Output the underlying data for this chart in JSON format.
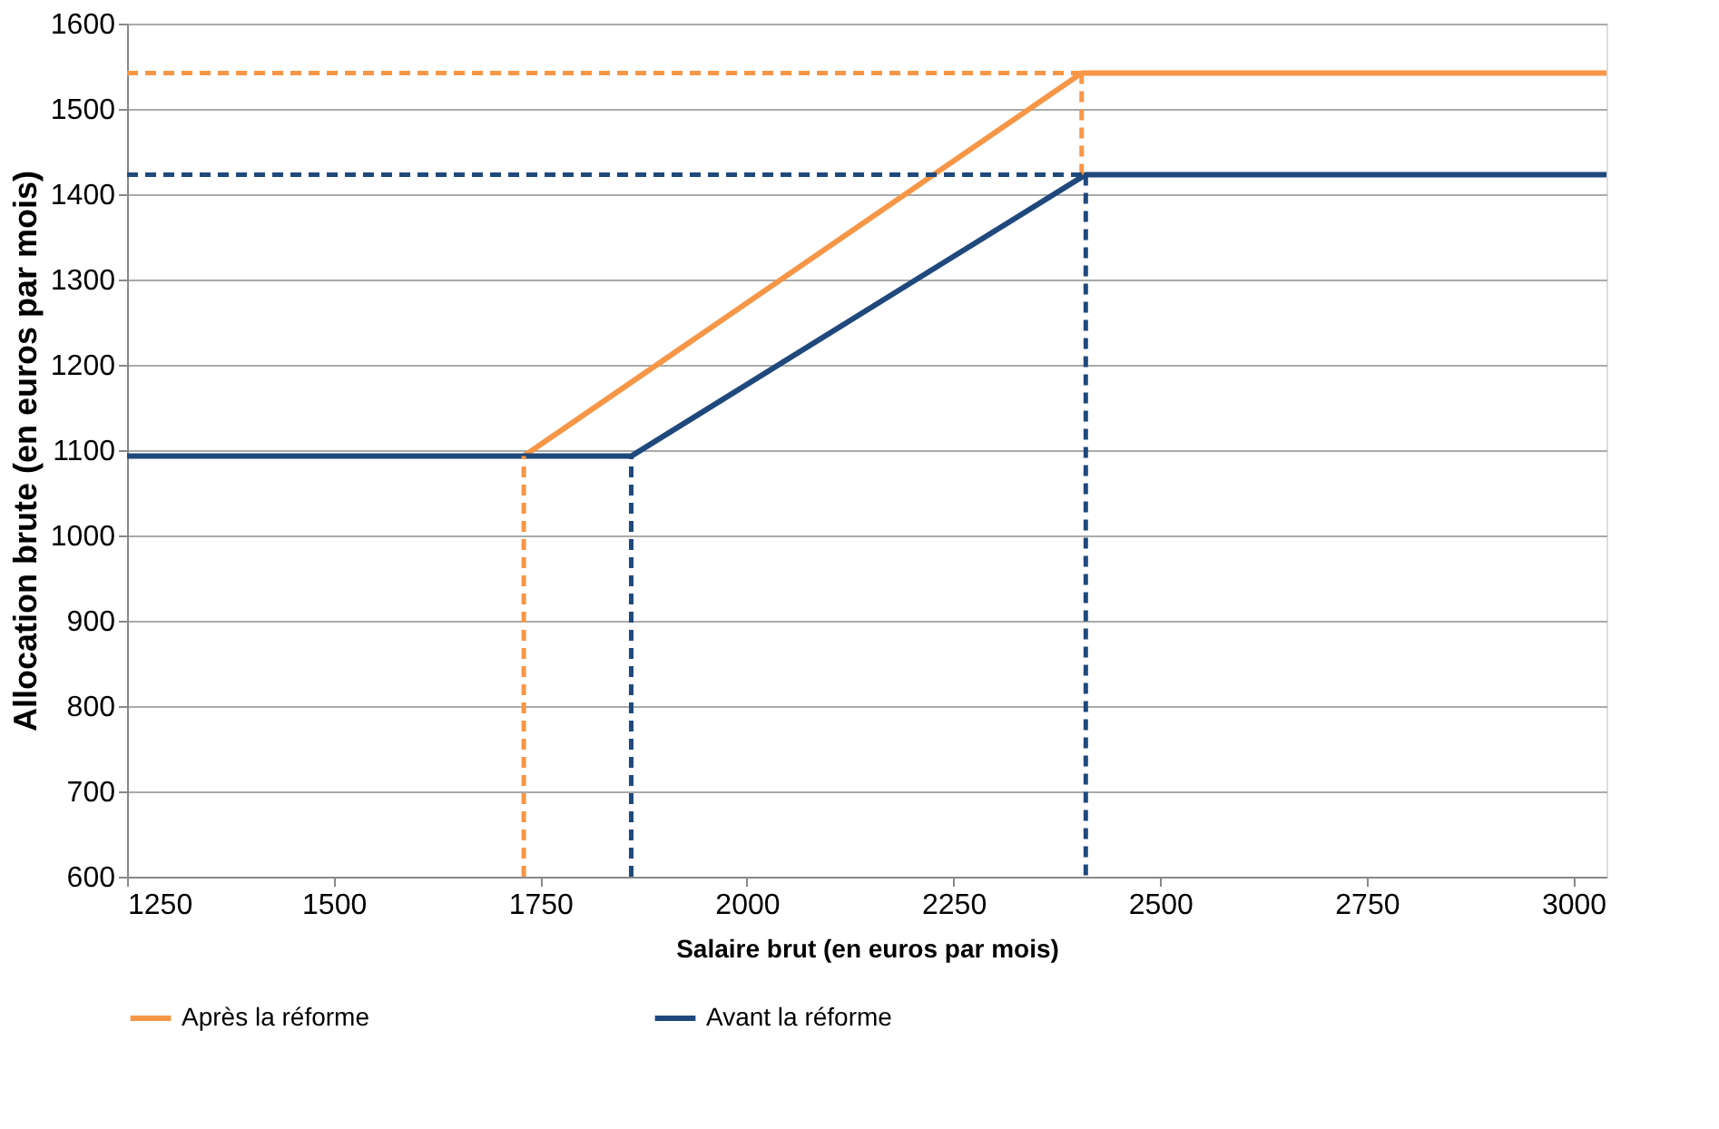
{
  "chart_data": {
    "type": "line",
    "xlabel": "Salaire brut (en euros par mois)",
    "ylabel": "Allocation brute (en euros par mois)",
    "xlim": [
      1250,
      3040
    ],
    "xticks": [
      1250,
      1500,
      1750,
      2000,
      2250,
      2500,
      2750,
      3000
    ],
    "ylim": [
      600,
      1600
    ],
    "yticks": [
      600,
      700,
      800,
      900,
      1000,
      1100,
      1200,
      1300,
      1400,
      1500,
      1600
    ],
    "grid": "y",
    "legend": "bottom",
    "line_style": "solid",
    "marker": "none",
    "series": [
      {
        "name": "Après la réforme",
        "color": "#f79646",
        "x": [
          1730,
          2405,
          3040
        ],
        "values": [
          1093,
          1542,
          1542
        ]
      },
      {
        "name": "Avant la réforme",
        "color": "#1f497d",
        "x": [
          1250,
          1860,
          2410,
          3040
        ],
        "values": [
          1093,
          1093,
          1423,
          1423
        ]
      },
      {
        "color": "#f79646",
        "line_style": "dashed",
        "x": [
          1730,
          1730
        ],
        "values": [
          600,
          1093
        ]
      },
      {
        "color": "#f79646",
        "line_style": "dashed",
        "x": [
          1250,
          2405
        ],
        "values": [
          1542,
          1542
        ]
      },
      {
        "color": "#f79646",
        "line_style": "dashed",
        "x": [
          2405,
          2405
        ],
        "values": [
          1542,
          1423
        ]
      },
      {
        "color": "#1f497d",
        "line_style": "dashed",
        "x": [
          1860,
          1860
        ],
        "values": [
          600,
          1093
        ]
      },
      {
        "color": "#1f497d",
        "line_style": "dashed",
        "x": [
          1250,
          2410
        ],
        "values": [
          1423,
          1423
        ]
      },
      {
        "color": "#1f497d",
        "line_style": "dashed",
        "x": [
          2410,
          2410
        ],
        "values": [
          1423,
          600
        ]
      }
    ]
  }
}
